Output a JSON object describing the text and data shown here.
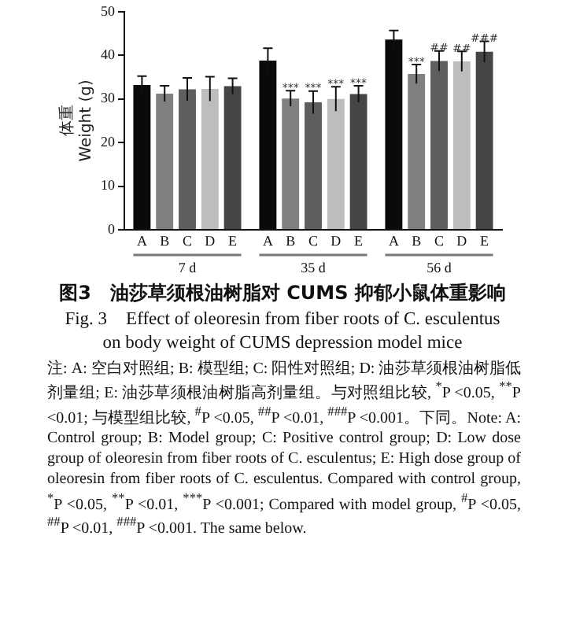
{
  "chart_data": {
    "type": "bar",
    "title": "图3　油莎草须根油树脂对 CUMS 抑郁小鼠体重影响",
    "subtitle": "Fig. 3　Effect of oleoresin from fiber roots of C. esculentus on body weight of CUMS depression model mice",
    "ylabel": "体重\nWeight (g)",
    "categories": [
      "7 d",
      "35 d",
      "56 d"
    ],
    "ylim": [
      0,
      50
    ],
    "yticks": [
      0,
      10,
      20,
      30,
      40,
      50
    ],
    "grid": false,
    "series": [
      {
        "name": "A",
        "color": "#0a0a0a",
        "values": [
          33.2,
          38.8,
          43.6
        ],
        "errors": [
          2.0,
          2.8,
          2.1
        ],
        "value_labels": [
          null,
          null,
          null
        ]
      },
      {
        "name": "B",
        "color": "#808080",
        "values": [
          31.2,
          30.1,
          35.7
        ],
        "errors": [
          1.8,
          1.8,
          2.2
        ],
        "value_labels": [
          null,
          "***",
          "***"
        ]
      },
      {
        "name": "C",
        "color": "#5e5e5e",
        "values": [
          32.2,
          29.2,
          38.7
        ],
        "errors": [
          2.6,
          2.6,
          2.3
        ],
        "value_labels": [
          null,
          "***",
          "##"
        ]
      },
      {
        "name": "D",
        "color": "#bdbdbd",
        "values": [
          32.3,
          30.0,
          38.6
        ],
        "errors": [
          2.8,
          2.8,
          2.3
        ],
        "value_labels": [
          null,
          "***",
          "##"
        ]
      },
      {
        "name": "E",
        "color": "#454545",
        "values": [
          32.9,
          31.1,
          40.8
        ],
        "errors": [
          1.8,
          1.9,
          2.4
        ],
        "value_labels": [
          null,
          "***",
          "###"
        ]
      }
    ],
    "annotations": [
      "注: A: 空白对照组; B: 模型组; C: 阳性对照组; D: 油莎草须根油树脂低剂量组; E: 油莎草须根油树脂高剂量组。与对照组比较, $^{*}$P <0.05, $^{**}$P <0.01; 与模型组比较, $^{#}$P <0.05, $^{##}$P <0.01, $^{###}$P <0.001。下同。Note: A: Control group; B: Model group; C: Positive control group; D: Low dose group of oleoresin from fiber roots of C. esculentus; E: High dose group of oleoresin from fiber roots of C. esculentus. Compared with control group, $^{*}$P <0.05, $^{**}$P <0.01, $^{***}$P <0.001; Compared with model group, $^{#}$P <0.05, $^{##}$P <0.01, $^{###}$P <0.001. The same below."
    ]
  }
}
